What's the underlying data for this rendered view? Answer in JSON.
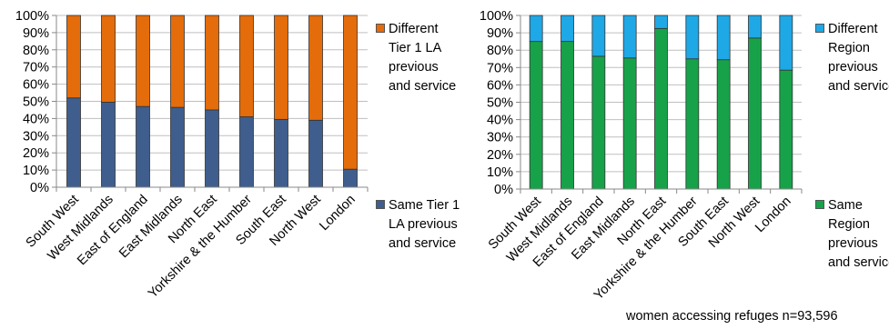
{
  "colors": {
    "same_tier": "#3F5E8E",
    "different_tier": "#E46C0A",
    "same_region": "#17A24A",
    "different_region": "#1FA8E6"
  },
  "chart_data": [
    {
      "type": "bar",
      "stacked": true,
      "categories": [
        "South West",
        "West Midlands",
        "East of England",
        "East Midlands",
        "North East",
        "Yorkshire & the Humber",
        "South East",
        "North West",
        "London"
      ],
      "ylim": [
        0,
        100
      ],
      "yticks": [
        "0%",
        "10%",
        "20%",
        "30%",
        "40%",
        "50%",
        "60%",
        "70%",
        "80%",
        "90%",
        "100%"
      ],
      "series": [
        {
          "name": "Same Tier 1 LA previous and service",
          "values": [
            52,
            49.5,
            47,
            46.5,
            45,
            41,
            39.5,
            39,
            10.5
          ]
        },
        {
          "name": "Different Tier 1 LA previous and service",
          "values": [
            48,
            50.5,
            53,
            53.5,
            55,
            59,
            60.5,
            61,
            89.5
          ]
        }
      ],
      "legend": "right"
    },
    {
      "type": "bar",
      "stacked": true,
      "categories": [
        "South West",
        "West Midlands",
        "East of England",
        "East Midlands",
        "North East",
        "Yorkshire & the Humber",
        "South East",
        "North West",
        "London"
      ],
      "ylim": [
        0,
        100
      ],
      "yticks": [
        "0%",
        "10%",
        "20%",
        "30%",
        "40%",
        "50%",
        "60%",
        "70%",
        "80%",
        "90%",
        "100%"
      ],
      "series": [
        {
          "name": "Same Region previous and service",
          "values": [
            85,
            85,
            76.5,
            75.5,
            92.5,
            75,
            74.5,
            87,
            68.5
          ]
        },
        {
          "name": "Different Region previous and service",
          "values": [
            15,
            15,
            23.5,
            24.5,
            7.5,
            25,
            25.5,
            13,
            31.5
          ]
        }
      ],
      "legend": "right"
    }
  ],
  "legend1": {
    "different": "Different Tier 1 LA previous and service",
    "same": "Same Tier 1 LA previous and service"
  },
  "legend2": {
    "different": "Different Region previous and service",
    "same": "Same Region previous and service"
  },
  "footnote": "women accessing refuges n=93,596"
}
